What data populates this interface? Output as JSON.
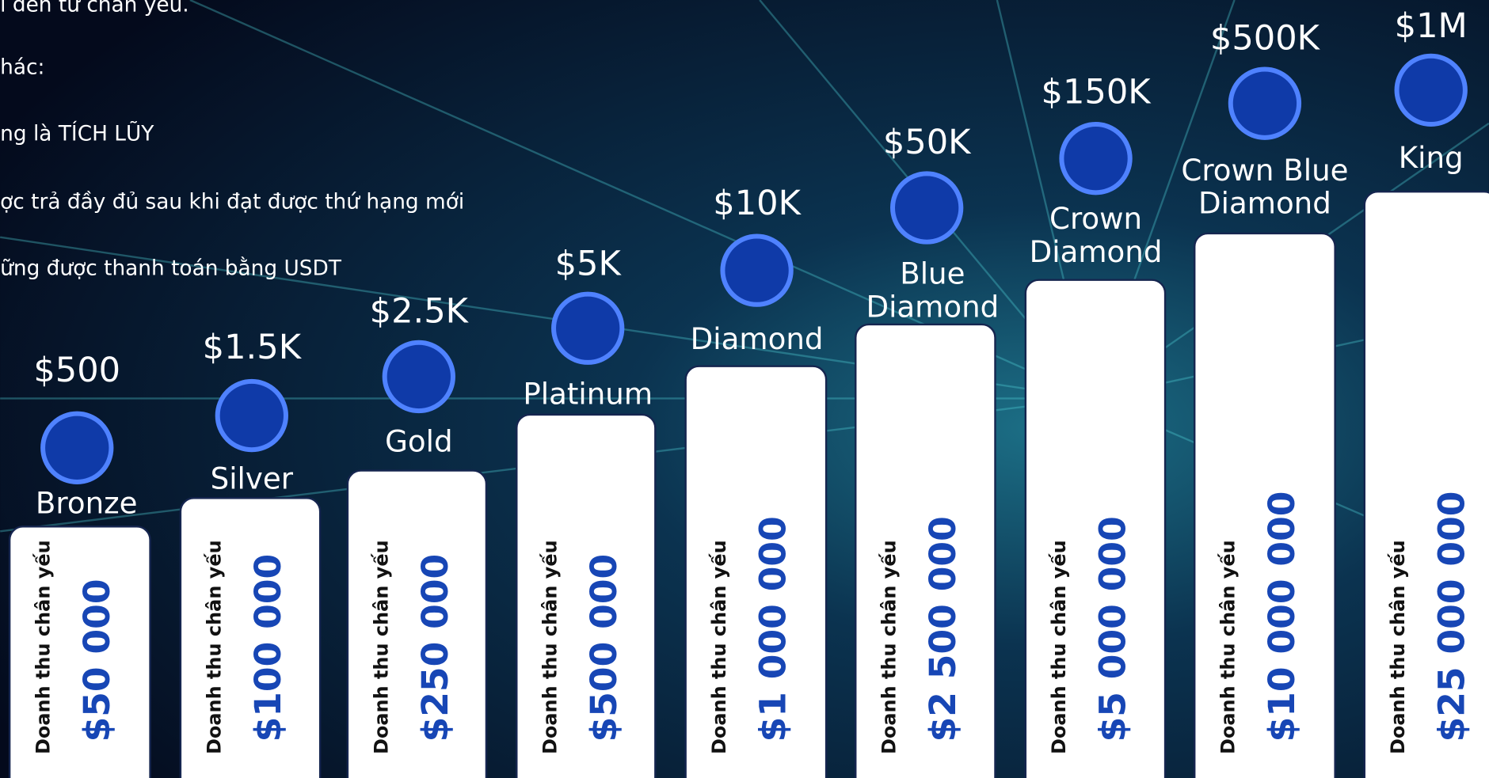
{
  "intro_lines": [
    "ı đến từ chân yếu.",
    "hác:",
    "ng là TÍCH LŨY",
    "ợc trả đầy đủ sau khi đạt được thứ hạng mới",
    "ững được thanh toán bằng USDT"
  ],
  "tiers": [
    {
      "reward": "$500",
      "name_lines": [
        "Bronze"
      ],
      "label": "Doanh thu chân yếu",
      "amount": "$50 000"
    },
    {
      "reward": "$1.5K",
      "name_lines": [
        "Silver"
      ],
      "label": "Doanh thu chân yếu",
      "amount": "$100 000"
    },
    {
      "reward": "$2.5K",
      "name_lines": [
        "Gold"
      ],
      "label": "Doanh thu chân yếu",
      "amount": "$250 000"
    },
    {
      "reward": "$5K",
      "name_lines": [
        "Platinum"
      ],
      "label": "Doanh thu chân yếu",
      "amount": "$500 000"
    },
    {
      "reward": "$10K",
      "name_lines": [
        "Diamond"
      ],
      "label": "Doanh thu chân yếu",
      "amount": "$1 000 000"
    },
    {
      "reward": "$50K",
      "name_lines": [
        "Blue",
        "Diamond"
      ],
      "label": "Doanh thu chân yếu",
      "amount": "$2 500 000"
    },
    {
      "reward": "$150K",
      "name_lines": [
        "Crown",
        "Diamond"
      ],
      "label": "Doanh thu chân yếu",
      "amount": "$5 000 000"
    },
    {
      "reward": "$500K",
      "name_lines": [
        "Crown Blue",
        "Diamond"
      ],
      "label": "Doanh thu chân yếu",
      "amount": "$10 000 000"
    },
    {
      "reward": "$1M",
      "name_lines": [
        "King"
      ],
      "label": "Doanh thu chân yếu",
      "amount": "$25 000 000"
    }
  ]
}
